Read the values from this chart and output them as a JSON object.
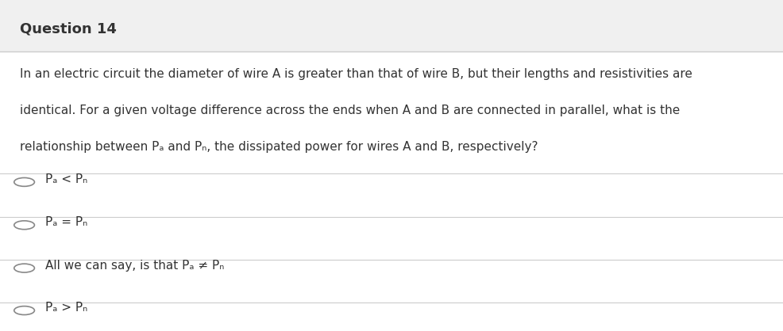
{
  "title": "Question 14",
  "background_color": "#f0f0f0",
  "content_background": "#ffffff",
  "title_fontsize": 13,
  "body_fontsize": 11,
  "question_text_line1": "In an electric circuit the diameter of wire A is greater than that of wire B, but their lengths and resistivities are",
  "question_text_line2": "identical. For a given voltage difference across the ends when A and B are connected in parallel, what is the",
  "question_text_line3": "relationship between Pₐ and Pₙ, the dissipated power for wires A and B, respectively?",
  "options": [
    "Pₐ < Pₙ",
    "Pₐ = Pₙ",
    "All we can say, is that Pₐ ≠ Pₙ",
    "Pₐ > Pₙ"
  ],
  "divider_color": "#cccccc",
  "text_color": "#333333",
  "circle_color": "#888888",
  "title_bar_height": 0.155
}
